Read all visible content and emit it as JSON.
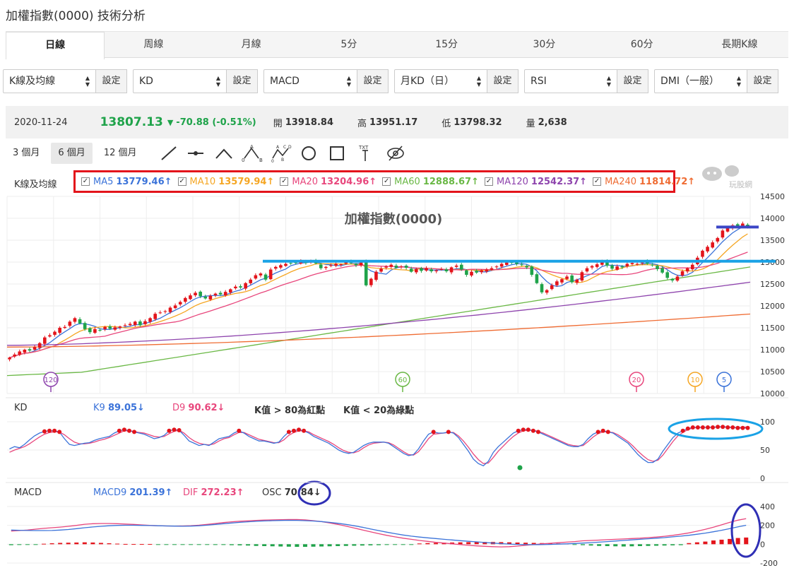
{
  "page": {
    "title": "加權指數(0000) 技術分析"
  },
  "tabs": [
    {
      "label": "日線",
      "active": true
    },
    {
      "label": "周線"
    },
    {
      "label": "月線"
    },
    {
      "label": "5分"
    },
    {
      "label": "15分"
    },
    {
      "label": "30分"
    },
    {
      "label": "60分"
    },
    {
      "label": "長期K線"
    }
  ],
  "selects": [
    {
      "value": "K線及均線",
      "button": "設定"
    },
    {
      "value": "KD",
      "button": "設定"
    },
    {
      "value": "MACD",
      "button": "設定"
    },
    {
      "value": "月KD（日）",
      "button": "設定"
    },
    {
      "value": "RSI",
      "button": "設定"
    },
    {
      "value": "DMI（一般）",
      "button": "設定"
    }
  ],
  "quote": {
    "date": "2020-11-24",
    "price": "13807.13",
    "change": "-70.88 (-0.51%)",
    "open_label": "開",
    "open": "13918.84",
    "high_label": "高",
    "high": "13951.17",
    "low_label": "低",
    "low": "13798.32",
    "vol_label": "量",
    "volume": "2,638",
    "down_arrow": "▼"
  },
  "ranges": [
    {
      "label": "3 個月"
    },
    {
      "label": "6 個月",
      "active": true
    },
    {
      "label": "12 個月"
    }
  ],
  "tools": [
    "line-tool-icon",
    "segment-tool-icon",
    "angle-tool-icon",
    "abc-tool-icon",
    "abcd-tool-icon",
    "circle-tool-icon",
    "rectangle-tool-icon",
    "text-tool-icon",
    "hide-tool-icon"
  ],
  "tool_text": {
    "a": "A",
    "b": "B",
    "c": "C",
    "d": "D",
    "zero": "0",
    "txt": "TXT"
  },
  "logo_text": "玩股網",
  "ma_section": {
    "label": "K線及均線",
    "items": [
      {
        "name": "MA5",
        "value": "13779.46↑",
        "color": "#3b73d9"
      },
      {
        "name": "MA10",
        "value": "13579.94↑",
        "color": "#f5a623"
      },
      {
        "name": "MA20",
        "value": "13204.96↑",
        "color": "#e8467c"
      },
      {
        "name": "MA60",
        "value": "12888.67↑",
        "color": "#6ab845"
      },
      {
        "name": "MA120",
        "value": "12542.37↑",
        "color": "#8e44ad"
      },
      {
        "name": "MA240",
        "value": "11814.72↑",
        "color": "#ef6c33"
      }
    ]
  },
  "kd_section": {
    "label": "KD",
    "k_name": "K9",
    "k_value": "89.05↓",
    "d_name": "D9",
    "d_value": "90.62↓",
    "note1": "K值 > 80為紅點",
    "note2": "K值 < 20為綠點"
  },
  "macd_section": {
    "label": "MACD",
    "macd_name": "MACD9",
    "macd_value": "201.39↑",
    "dif_name": "DIF",
    "dif_value": "272.23↑",
    "osc_name": "OSC",
    "osc_value": "70.84↓"
  },
  "chart_data": [
    {
      "type": "candlestick",
      "title": "加權指數(0000)",
      "ylim": [
        10000,
        14500
      ],
      "y_ticks": [
        10000,
        10500,
        11000,
        11500,
        12000,
        12500,
        13000,
        13500,
        14000,
        14500
      ],
      "close": [
        10820,
        10890,
        10960,
        11000,
        10980,
        11060,
        11150,
        11280,
        11330,
        11410,
        11500,
        11520,
        11640,
        11720,
        11600,
        11470,
        11400,
        11470,
        11450,
        11520,
        11480,
        11510,
        11530,
        11560,
        11590,
        11640,
        11560,
        11650,
        11720,
        11820,
        11850,
        11880,
        11960,
        12010,
        12090,
        12180,
        12240,
        12300,
        12220,
        12170,
        12230,
        12280,
        12260,
        12320,
        12380,
        12440,
        12420,
        12520,
        12600,
        12700,
        12740,
        12600,
        12830,
        12890,
        12930,
        12960,
        12980,
        12990,
        13020,
        12980,
        13030,
        12970,
        12860,
        12890,
        12930,
        12960,
        12950,
        13000,
        12980,
        12930,
        12990,
        12470,
        12620,
        12780,
        12850,
        12900,
        12940,
        12870,
        12900,
        12870,
        12780,
        12840,
        12800,
        12860,
        12790,
        12810,
        12840,
        12790,
        12880,
        12920,
        12830,
        12710,
        12780,
        12760,
        12810,
        12830,
        12860,
        12900,
        12960,
        12990,
        12990,
        12960,
        12930,
        12880,
        12710,
        12520,
        12310,
        12360,
        12470,
        12560,
        12610,
        12670,
        12540,
        12600,
        12770,
        12860,
        12910,
        12950,
        13010,
        12920,
        12850,
        12900,
        12880,
        12960,
        12980,
        12960,
        13000,
        12960,
        12930,
        12840,
        12760,
        12640,
        12580,
        12670,
        12790,
        12860,
        12940,
        13100,
        13260,
        13350,
        13450,
        13550,
        13720,
        13780,
        13840,
        13810,
        13880,
        13807
      ],
      "lines": {
        "MA5": {
          "start": 11100,
          "end": 13779
        },
        "MA10": {
          "start": 11020,
          "end": 13580
        },
        "MA20": {
          "start": 10960,
          "end": 13205
        },
        "MA60": {
          "start": 10410,
          "end": 12889
        },
        "MA120": {
          "start": 11100,
          "end": 12542
        },
        "MA240": {
          "start": 11060,
          "end": 11815
        }
      },
      "markers": [
        {
          "label": "120",
          "color": "#8e44ad"
        },
        {
          "label": "60",
          "color": "#6ab845"
        },
        {
          "label": "20",
          "color": "#e8467c"
        },
        {
          "label": "10",
          "color": "#f5a623"
        },
        {
          "label": "5",
          "color": "#3b73d9"
        }
      ],
      "annotations": {
        "hline_level": 13020,
        "short_hline_level": 13800,
        "hline_color": "#1aa2e6",
        "short_color": "#3b46c6"
      }
    },
    {
      "type": "line",
      "name": "KD",
      "ylim": [
        0,
        100
      ],
      "y_ticks": [
        0,
        50,
        100
      ],
      "K": [
        52,
        56,
        54,
        60,
        68,
        75,
        80,
        83,
        84,
        84,
        82,
        70,
        60,
        58,
        60,
        62,
        63,
        67,
        70,
        72,
        74,
        80,
        84,
        86,
        84,
        82,
        80,
        78,
        74,
        70,
        72,
        76,
        84,
        86,
        85,
        76,
        66,
        62,
        58,
        60,
        58,
        64,
        70,
        72,
        74,
        80,
        84,
        80,
        74,
        70,
        66,
        66,
        64,
        62,
        64,
        74,
        82,
        84,
        86,
        84,
        80,
        74,
        70,
        66,
        62,
        56,
        50,
        46,
        44,
        46,
        52,
        58,
        62,
        64,
        64,
        64,
        62,
        56,
        50,
        44,
        40,
        42,
        52,
        66,
        78,
        82,
        80,
        80,
        82,
        80,
        72,
        60,
        48,
        34,
        26,
        22,
        30,
        46,
        56,
        64,
        72,
        80,
        84,
        86,
        86,
        84,
        82,
        78,
        74,
        70,
        66,
        62,
        58,
        56,
        56,
        60,
        70,
        78,
        82,
        84,
        82,
        80,
        74,
        68,
        62,
        52,
        42,
        34,
        28,
        28,
        34,
        48,
        60,
        72,
        80,
        84,
        88,
        90,
        90,
        90,
        90,
        90,
        91,
        91,
        90,
        90,
        89,
        89,
        89
      ],
      "D": [
        46,
        50,
        53,
        56,
        61,
        67,
        73,
        78,
        81,
        82,
        82,
        77,
        70,
        64,
        61,
        61,
        62,
        64,
        67,
        69,
        72,
        76,
        80,
        84,
        84,
        83,
        81,
        80,
        77,
        74,
        73,
        74,
        79,
        83,
        85,
        80,
        72,
        66,
        62,
        60,
        59,
        61,
        66,
        70,
        72,
        77,
        81,
        81,
        77,
        73,
        69,
        67,
        65,
        63,
        63,
        68,
        76,
        81,
        84,
        84,
        82,
        77,
        73,
        69,
        65,
        60,
        54,
        49,
        46,
        45,
        48,
        54,
        59,
        62,
        63,
        64,
        63,
        59,
        53,
        47,
        42,
        41,
        47,
        58,
        70,
        78,
        79,
        80,
        81,
        81,
        75,
        66,
        55,
        43,
        33,
        26,
        27,
        37,
        48,
        57,
        66,
        74,
        80,
        84,
        85,
        85,
        83,
        80,
        76,
        72,
        68,
        64,
        60,
        58,
        57,
        58,
        65,
        73,
        79,
        82,
        82,
        81,
        77,
        71,
        65,
        57,
        48,
        40,
        33,
        30,
        32,
        41,
        53,
        65,
        75,
        81,
        86,
        89,
        90,
        90,
        90,
        90,
        91,
        91,
        91,
        90,
        90,
        90,
        91
      ]
    },
    {
      "type": "bar+line",
      "name": "MACD",
      "ylim": [
        -200,
        400
      ],
      "y_ticks": [
        -200,
        0,
        200,
        400
      ],
      "MACD": [
        150,
        148,
        146,
        145,
        145,
        146,
        150,
        156,
        165,
        175,
        183,
        190,
        196,
        200,
        201,
        201,
        200,
        198,
        196,
        194,
        192,
        191,
        192,
        196,
        202,
        210,
        218,
        225,
        232,
        238,
        243,
        247,
        250,
        252,
        254,
        253,
        250,
        246,
        240,
        232,
        222,
        210,
        196,
        180,
        162,
        145,
        128,
        112,
        98,
        86,
        76,
        68,
        60,
        52,
        45,
        38,
        31,
        25,
        18,
        12,
        6,
        2,
        -2,
        -4,
        -5,
        -4,
        -2,
        1,
        4,
        8,
        12,
        17,
        22,
        28,
        34,
        40,
        46,
        52,
        58,
        64,
        70,
        78,
        86,
        95,
        106,
        118,
        132,
        148,
        166,
        184,
        201
      ],
      "DIF": [
        140,
        145,
        150,
        160,
        168,
        175,
        182,
        190,
        200,
        212,
        218,
        220,
        220,
        218,
        214,
        210,
        205,
        200,
        196,
        194,
        193,
        194,
        196,
        202,
        210,
        220,
        230,
        238,
        244,
        248,
        252,
        256,
        258,
        260,
        262,
        262,
        258,
        250,
        240,
        226,
        210,
        192,
        172,
        152,
        132,
        112,
        94,
        78,
        64,
        52,
        40,
        30,
        20,
        12,
        4,
        -4,
        -12,
        -18,
        -22,
        -26,
        -28,
        -26,
        -20,
        -12,
        -4,
        4,
        10,
        16,
        22,
        28,
        36,
        40,
        44,
        48,
        52,
        56,
        60,
        64,
        70,
        76,
        84,
        94,
        106,
        120,
        138,
        158,
        180,
        206,
        232,
        255,
        272
      ],
      "OSC": [
        -10,
        -8,
        -6,
        -4,
        5,
        10,
        14,
        16,
        18,
        20,
        18,
        14,
        10,
        6,
        3,
        2,
        2,
        2,
        -1,
        -3,
        -5,
        -6,
        -6,
        -6,
        -6,
        -8,
        -8,
        -10,
        -12,
        -14,
        -18,
        -20,
        -22,
        -24,
        -26,
        -28,
        -28,
        -26,
        -24,
        -22,
        -20,
        -18,
        -16,
        -14,
        -12,
        -10,
        -8,
        -6,
        -4,
        -2,
        8,
        12,
        14,
        16,
        18,
        20,
        22,
        24,
        24,
        24,
        22,
        20,
        18,
        16,
        14,
        12,
        10,
        8,
        6,
        -6,
        -10,
        -14,
        -18,
        -20,
        -22,
        -24,
        -22,
        -20,
        -18,
        -16,
        -14,
        -12,
        -10,
        12,
        20,
        28,
        40,
        48,
        56,
        66,
        71
      ]
    }
  ]
}
